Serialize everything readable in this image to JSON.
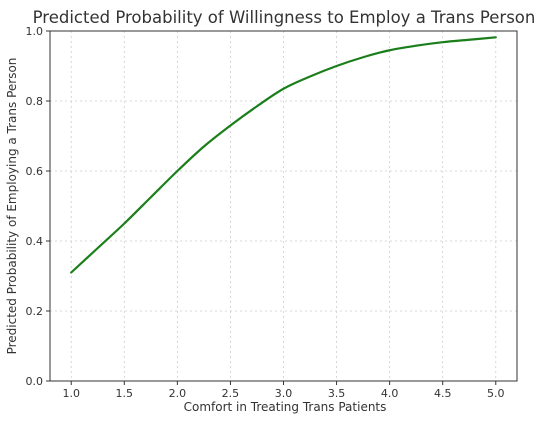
{
  "chart_data": {
    "type": "line",
    "title": "Predicted Probability of Willingness to Employ a Trans Person",
    "xlabel": "Comfort in Treating Trans Patients",
    "ylabel": "Predicted Probability of Employing a Trans Person",
    "xlim": [
      0.8,
      5.2
    ],
    "ylim": [
      0.0,
      1.0
    ],
    "x_ticks": [
      1.0,
      1.5,
      2.0,
      2.5,
      3.0,
      3.5,
      4.0,
      4.5,
      5.0
    ],
    "x_tick_labels": [
      "1.0",
      "1.5",
      "2.0",
      "2.5",
      "3.0",
      "3.5",
      "4.0",
      "4.5",
      "5.0"
    ],
    "y_ticks": [
      0.0,
      0.2,
      0.4,
      0.6,
      0.8,
      1.0
    ],
    "y_tick_labels": [
      "0.0",
      "0.2",
      "0.4",
      "0.6",
      "0.8",
      "1.0"
    ],
    "grid": true,
    "series": [
      {
        "color": "#1a7f1a",
        "x": [
          1.0,
          1.25,
          1.5,
          1.75,
          2.0,
          2.25,
          2.5,
          2.75,
          3.0,
          3.25,
          3.5,
          3.75,
          4.0,
          4.25,
          4.5,
          4.75,
          5.0
        ],
        "y": [
          0.31,
          0.38,
          0.45,
          0.525,
          0.6,
          0.67,
          0.73,
          0.785,
          0.835,
          0.87,
          0.9,
          0.925,
          0.945,
          0.958,
          0.968,
          0.975,
          0.982
        ]
      }
    ]
  }
}
